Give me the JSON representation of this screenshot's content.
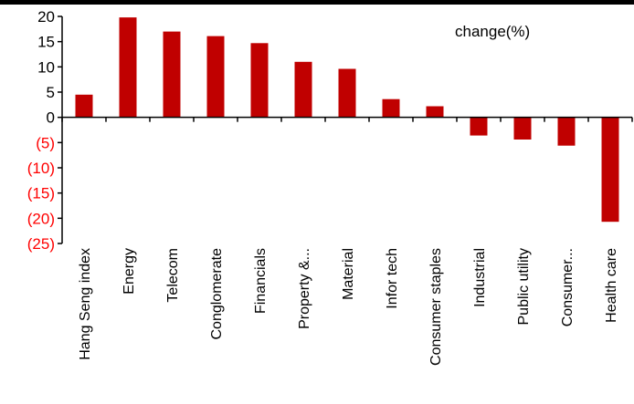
{
  "chart_data": {
    "type": "bar",
    "categories": [
      "Hang Seng index",
      "Energy",
      "Telecom",
      "Conglomerate",
      "Financials",
      "Property &...",
      "Material",
      "Infor tech",
      "Consumer staples",
      "Industrial",
      "Public utility",
      "Consumer...",
      "Health care"
    ],
    "series": [
      {
        "name": "change(%)",
        "values": [
          4.5,
          19.8,
          17.0,
          16.1,
          14.7,
          11.0,
          9.6,
          3.6,
          2.2,
          -3.6,
          -4.4,
          -5.6,
          -20.7
        ]
      }
    ],
    "y_ticks": [
      20,
      15,
      10,
      5,
      0,
      -5,
      -10,
      -15,
      -20,
      -25
    ],
    "y_tick_labels": [
      "20",
      "15",
      "10",
      "5",
      "0",
      "(5)",
      "(10)",
      "(15)",
      "(20)",
      "(25)"
    ],
    "ylim": [
      -25,
      20
    ],
    "legend_text": "change(%)",
    "legend_position": "top-right",
    "grid": false,
    "colors": {
      "bar": "#c00000",
      "positive_tick": "#000000",
      "negative_tick": "#ff0000",
      "axis": "#000000"
    }
  }
}
